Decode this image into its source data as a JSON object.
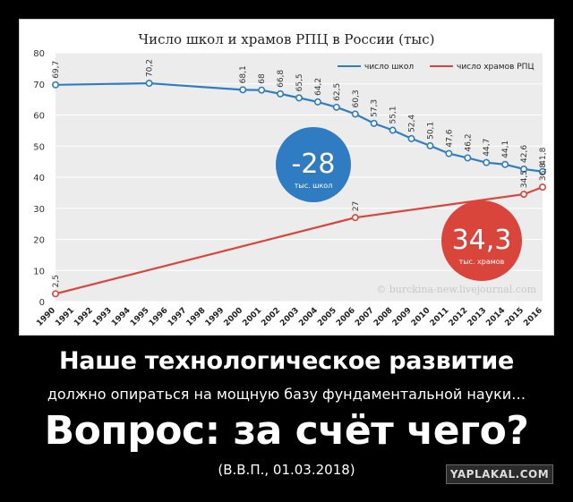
{
  "chart_data": {
    "type": "line",
    "title": "Число школ и храмов РПЦ в России (тыс)",
    "x": [
      1990,
      1991,
      1992,
      1993,
      1994,
      1995,
      1996,
      1997,
      1998,
      1999,
      2000,
      2001,
      2002,
      2003,
      2004,
      2005,
      2006,
      2007,
      2008,
      2009,
      2010,
      2011,
      2012,
      2013,
      2014,
      2015,
      2016
    ],
    "ylim": [
      0,
      80
    ],
    "yticks": [
      0,
      10,
      20,
      30,
      40,
      50,
      60,
      70,
      80
    ],
    "grid": true,
    "legend_position": "top-right",
    "series": [
      {
        "name": "число школ",
        "color": "#2f7cc3",
        "points": [
          [
            1990,
            69.7
          ],
          [
            1995,
            70.2
          ],
          [
            2000,
            68.1
          ],
          [
            2001,
            68
          ],
          [
            2002,
            66.8
          ],
          [
            2003,
            65.5
          ],
          [
            2004,
            64.2
          ],
          [
            2005,
            62.5
          ],
          [
            2006,
            60.3
          ],
          [
            2007,
            57.3
          ],
          [
            2008,
            55.1
          ],
          [
            2009,
            52.4
          ],
          [
            2010,
            50.1
          ],
          [
            2011,
            47.6
          ],
          [
            2012,
            46.2
          ],
          [
            2013,
            44.7
          ],
          [
            2014,
            44.1
          ],
          [
            2015,
            42.6
          ],
          [
            2016,
            41.8
          ]
        ],
        "labels": [
          "69,7",
          "70,2",
          "68,1",
          "68",
          "66,8",
          "65,5",
          "64,2",
          "62,5",
          "60,3",
          "57,3",
          "55,1",
          "52,4",
          "50,1",
          "47,6",
          "46,2",
          "44,7",
          "44,1",
          "42,6",
          "41,8"
        ]
      },
      {
        "name": "число храмов РПЦ",
        "color": "#d9453a",
        "points": [
          [
            1990,
            2.5
          ],
          [
            2006,
            27
          ],
          [
            2015,
            34.5
          ],
          [
            2016,
            36.8
          ]
        ],
        "labels": [
          "2,5",
          "27",
          "34,5",
          "36,8"
        ]
      }
    ],
    "annotations": [
      {
        "value": "-28",
        "caption": "тыс. школ",
        "color": "#2f7cc3"
      },
      {
        "value": "34,3",
        "caption": "тыс. храмов",
        "color": "#d9453a"
      }
    ],
    "watermark": "© burckina-new.livejournal.com"
  },
  "caption": {
    "line1": "Наше технологическое развитие",
    "line2": "должно опираться на мощную базу фундаментальной науки…",
    "line3": "Вопрос: за счёт чего?",
    "line4": "(В.В.П., 01.03.2018)"
  },
  "site_badge": "YAPLAKAL.COM"
}
